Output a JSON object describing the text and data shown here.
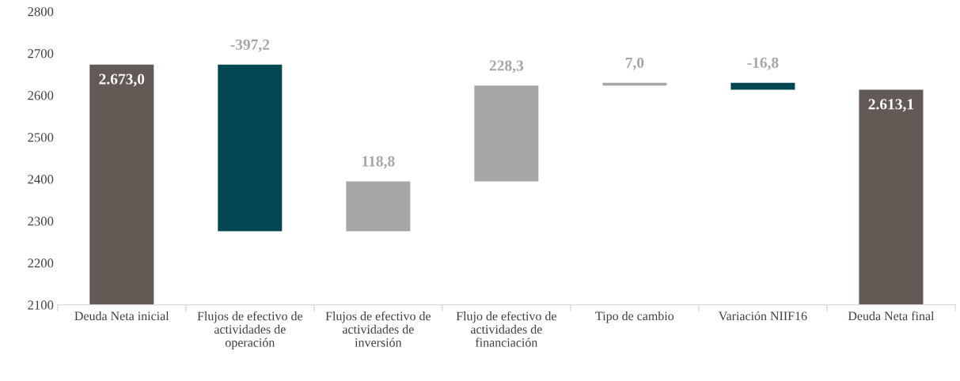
{
  "chart_data": {
    "type": "bar",
    "categories": [
      "Deuda Neta inicial",
      "Flujos de efectivo de actividades de operación",
      "Flujos de efectivo de actividades de inversión",
      "Flujo de efectivo de actividades de financiación",
      "Tipo de cambio",
      "Variación NIIF16",
      "Deuda Neta final"
    ],
    "values": [
      2673.0,
      -397.2,
      118.8,
      228.3,
      7.0,
      -16.8,
      2613.1
    ],
    "base": [
      0,
      2673.0,
      2275.8,
      2394.6,
      2622.9,
      2629.9,
      0
    ],
    "colors": [
      "#635a55",
      "#034752",
      "#a6a6a6",
      "#a6a6a6",
      "#a6a6a6",
      "#034752",
      "#635a55"
    ],
    "value_labels": [
      "2.673,0",
      "-397,2",
      "118,8",
      "228,3",
      "7,0",
      "-16,8",
      "2.613,1"
    ],
    "ylim": [
      2100,
      2800
    ],
    "yticks": [
      2100,
      2200,
      2300,
      2400,
      2500,
      2600,
      2700,
      2800
    ],
    "grid": false,
    "legend": false
  }
}
